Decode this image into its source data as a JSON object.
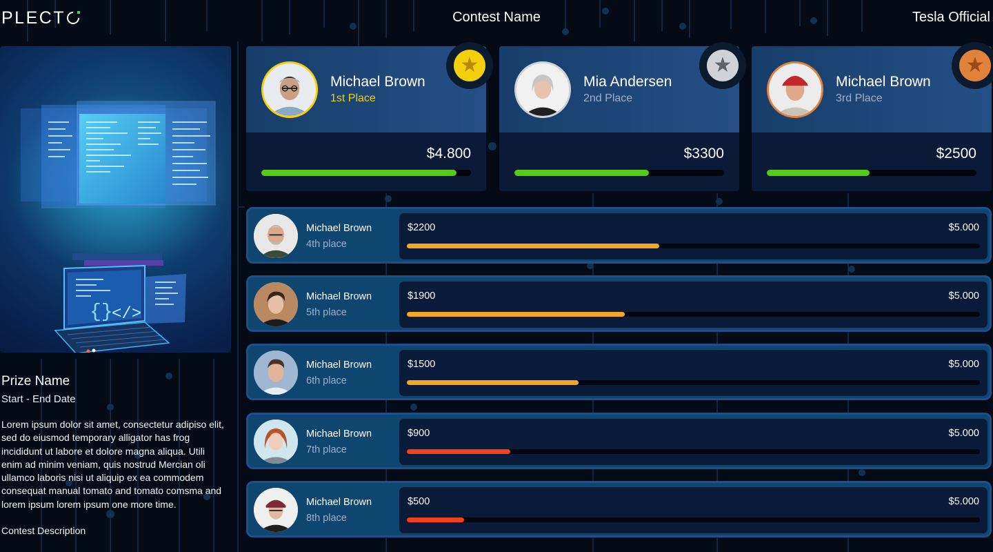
{
  "header": {
    "logo_text": "PLECT",
    "contest_name": "Contest Name",
    "organization": "Tesla Official"
  },
  "prize": {
    "name": "Prize Name",
    "dates": "Start - End Date",
    "description": "Lorem ipsum dolor sit amet, consectetur adipiso elit, sed do eiusmod temporary alligator has frog incididunt ut labore et dolore magna aliqua. Utili enim ad minim veniam, quis nostrud Mercian oli ullamco laboris nisi ut aliquip ex ea commodem consequat manual tomato and tomato comsma and lorem ipsum lorem ipsum one more time.",
    "contest_description": "Contest Description"
  },
  "podium": [
    {
      "name": "Michael Brown",
      "place": "1st Place",
      "amount": "$4.800",
      "progress": 0.93,
      "medal": "gold-star-medal-icon",
      "place_color": "#f4d00c",
      "ring_color": "#f4d00c",
      "medal_color": "#f4d00c",
      "bar_color": "#55c91d"
    },
    {
      "name": "Mia Andersen",
      "place": "2nd Place",
      "amount": "$3300",
      "progress": 0.64,
      "medal": "silver-star-medal-icon",
      "place_color": "#9fb0c8",
      "ring_color": "#cfd3d8",
      "medal_color": "#cfd3d8",
      "bar_color": "#55c91d"
    },
    {
      "name": "Michael Brown",
      "place": "3rd Place",
      "amount": "$2500",
      "progress": 0.49,
      "medal": "bronze-star-medal-icon",
      "place_color": "#9fb0c8",
      "ring_color": "#e1823a",
      "medal_color": "#e1823a",
      "bar_color": "#55c91d"
    }
  ],
  "rows": [
    {
      "name": "Michael Brown",
      "place": "4th place",
      "value": "$2200",
      "target": "$5.000",
      "progress": 0.44,
      "bar_color": "#f5a623"
    },
    {
      "name": "Michael Brown",
      "place": "5th place",
      "value": "$1900",
      "target": "$5.000",
      "progress": 0.38,
      "bar_color": "#f5a623"
    },
    {
      "name": "Michael Brown",
      "place": "6th place",
      "value": "$1500",
      "target": "$5.000",
      "progress": 0.3,
      "bar_color": "#f5a623"
    },
    {
      "name": "Michael Brown",
      "place": "7th place",
      "value": "$900",
      "target": "$5.000",
      "progress": 0.18,
      "bar_color": "#f0401c"
    },
    {
      "name": "Michael Brown",
      "place": "8th place",
      "value": "$500",
      "target": "$5.000",
      "progress": 0.1,
      "bar_color": "#f0401c"
    }
  ],
  "colors": {
    "background": "#050b16",
    "progress_green": "#55c91d",
    "progress_orange": "#f5a623",
    "progress_red": "#f0401c",
    "gold": "#f4d00c",
    "silver": "#cfd3d8",
    "bronze": "#e1823a"
  }
}
